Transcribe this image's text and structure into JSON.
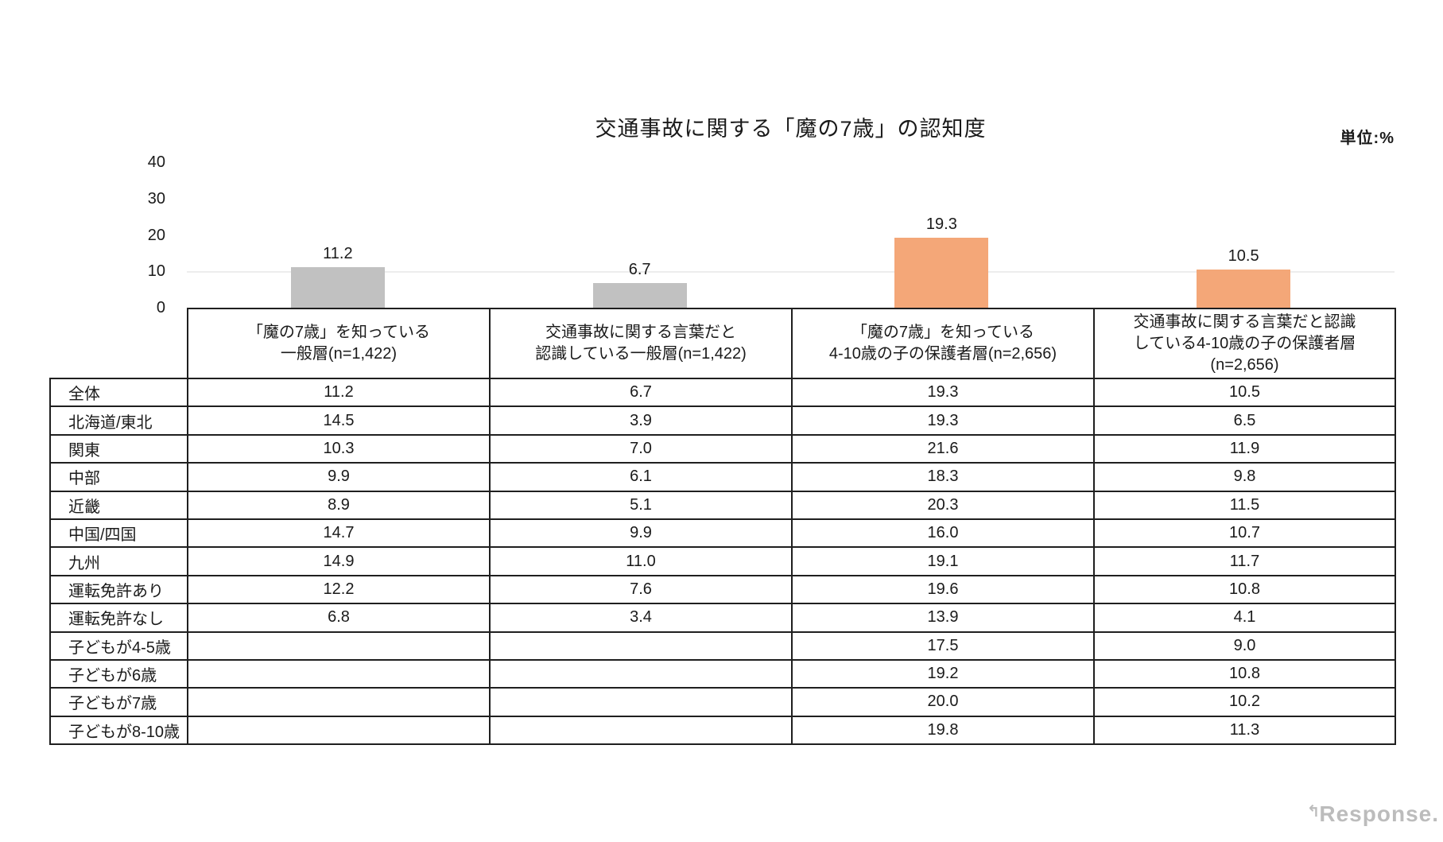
{
  "chart_data": {
    "type": "bar",
    "title": "交通事故に関する「魔の7歳」の認知度",
    "unit_label": "単位:%",
    "ylim": [
      0,
      40
    ],
    "yticks": [
      0,
      10,
      20,
      30,
      40
    ],
    "gridlines_at": [
      10
    ],
    "legend_position": "none",
    "categories": [
      [
        "「魔の7歳」を知っている",
        "一般層(n=1,422)"
      ],
      [
        "交通事故に関する言葉だと",
        "認識している一般層(n=1,422)"
      ],
      [
        "「魔の7歳」を知っている",
        "4-10歳の子の保護者層(n=2,656)"
      ],
      [
        "交通事故に関する言葉だと認識",
        "している4-10歳の子の保護者層",
        "(n=2,656)"
      ]
    ],
    "values": [
      11.2,
      6.7,
      19.3,
      10.5
    ],
    "value_labels": [
      "11.2",
      "6.7",
      "19.3",
      "10.5"
    ],
    "bar_colors": [
      "#c1c1c1",
      "#c1c1c1",
      "#f4a778",
      "#f4a778"
    ],
    "gray_bar_color": "#c1c1c1",
    "orange_bar_color": "#f4a778",
    "table_rows": [
      {
        "label": "全体",
        "values": [
          "11.2",
          "6.7",
          "19.3",
          "10.5"
        ]
      },
      {
        "label": "北海道/東北",
        "values": [
          "14.5",
          "3.9",
          "19.3",
          "6.5"
        ]
      },
      {
        "label": "関東",
        "values": [
          "10.3",
          "7.0",
          "21.6",
          "11.9"
        ]
      },
      {
        "label": "中部",
        "values": [
          "9.9",
          "6.1",
          "18.3",
          "9.8"
        ]
      },
      {
        "label": "近畿",
        "values": [
          "8.9",
          "5.1",
          "20.3",
          "11.5"
        ]
      },
      {
        "label": "中国/四国",
        "values": [
          "14.7",
          "9.9",
          "16.0",
          "10.7"
        ]
      },
      {
        "label": "九州",
        "values": [
          "14.9",
          "11.0",
          "19.1",
          "11.7"
        ]
      },
      {
        "label": "運転免許あり",
        "values": [
          "12.2",
          "7.6",
          "19.6",
          "10.8"
        ]
      },
      {
        "label": "運転免許なし",
        "values": [
          "6.8",
          "3.4",
          "13.9",
          "4.1"
        ]
      },
      {
        "label": "子どもが4-5歳",
        "values": [
          "",
          "",
          "17.5",
          "9.0"
        ]
      },
      {
        "label": "子どもが6歳",
        "values": [
          "",
          "",
          "19.2",
          "10.8"
        ]
      },
      {
        "label": "子どもが7歳",
        "values": [
          "",
          "",
          "20.0",
          "10.2"
        ]
      },
      {
        "label": "子どもが8-10歳",
        "values": [
          "",
          "",
          "19.8",
          "11.3"
        ]
      }
    ]
  },
  "watermark": "Response."
}
